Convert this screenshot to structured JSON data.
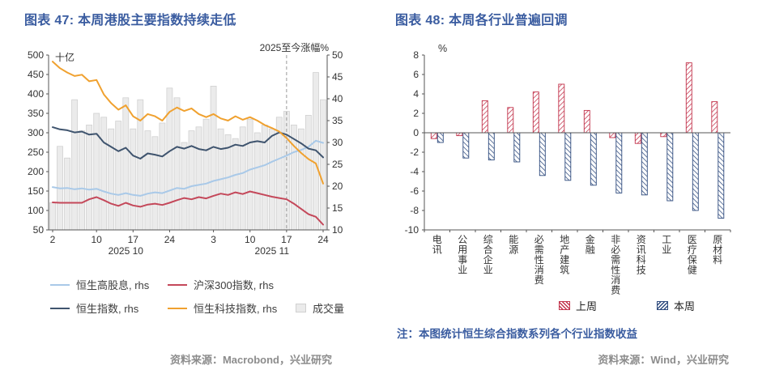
{
  "theme": {
    "title_color": "#3A5CA0",
    "note_color": "#3A5CA0",
    "source_color": "#8C8C8C",
    "axis_text_color": "#333333",
    "axis_line_color": "#555555",
    "dashed_line_color": "#999999",
    "background": "#FFFFFF"
  },
  "chart_data": [
    {
      "type": "line+bar",
      "title": "图表 47: 本周港股主要指数持续走低",
      "annotation": "2025至今涨幅%",
      "source": "资料来源：Macrobond，兴业研究",
      "left_axis": {
        "label": "十亿",
        "min": 50,
        "max": 500,
        "ticks": [
          500,
          450,
          400,
          350,
          300,
          250,
          200,
          150,
          100,
          50
        ]
      },
      "right_axis": {
        "min": 10,
        "max": 50,
        "ticks": [
          50,
          45,
          40,
          35,
          30,
          25,
          20,
          15,
          10
        ]
      },
      "x_ticks": [
        {
          "index": 0,
          "label": "2"
        },
        {
          "index": 6,
          "label": "10"
        },
        {
          "index": 11,
          "label": "17"
        },
        {
          "index": 16,
          "label": "24"
        },
        {
          "index": 22,
          "label": "3"
        },
        {
          "index": 27,
          "label": "10"
        },
        {
          "index": 32,
          "label": "17"
        },
        {
          "index": 37,
          "label": "24"
        }
      ],
      "x_group_labels": [
        {
          "center": 10,
          "label": "2025 10"
        },
        {
          "center": 30,
          "label": "2025 11"
        }
      ],
      "dashed_line_index": 32,
      "volume": {
        "name": "成交量",
        "fill": "#EBEBEB",
        "border": "#D0D0D0",
        "values": [
          120,
          265,
          235,
          385,
          305,
          320,
          350,
          340,
          310,
          330,
          390,
          310,
          385,
          305,
          290,
          325,
          415,
          390,
          275,
          305,
          315,
          335,
          420,
          310,
          295,
          285,
          315,
          335,
          300,
          320,
          310,
          340,
          355,
          320,
          310,
          345,
          455,
          385
        ]
      },
      "series": [
        {
          "name": "恒生高股息, rhs",
          "color": "#A9C9E8",
          "values": [
            19.8,
            19.5,
            19.6,
            19.3,
            19.5,
            19.2,
            19.4,
            18.8,
            18.3,
            18.0,
            18.4,
            18.0,
            17.8,
            18.3,
            18.6,
            18.4,
            19.0,
            19.6,
            19.4,
            20.0,
            20.3,
            20.6,
            21.2,
            21.6,
            22.0,
            22.6,
            23.0,
            23.8,
            24.3,
            24.8,
            25.6,
            26.3,
            27.0,
            27.8,
            28.3,
            29.0,
            30.4,
            29.9
          ]
        },
        {
          "name": "沪深300指数, rhs",
          "color": "#C4485A",
          "values": [
            16.3,
            16.2,
            16.2,
            16.2,
            16.2,
            17.0,
            17.5,
            16.8,
            16.0,
            15.5,
            16.2,
            15.6,
            15.3,
            15.8,
            16.0,
            15.7,
            16.2,
            16.8,
            17.3,
            17.0,
            17.5,
            17.2,
            17.8,
            18.3,
            18.0,
            18.6,
            18.2,
            18.8,
            18.4,
            18.0,
            17.6,
            17.3,
            17.0,
            16.0,
            14.8,
            13.6,
            13.0,
            11.2
          ]
        },
        {
          "name": "恒生指数, rhs",
          "color": "#3F546E",
          "values": [
            33.5,
            33.0,
            32.8,
            32.3,
            32.5,
            31.8,
            32.0,
            30.0,
            29.0,
            28.0,
            28.8,
            27.0,
            26.3,
            27.5,
            27.2,
            26.8,
            28.0,
            29.0,
            28.6,
            29.2,
            28.5,
            28.2,
            29.0,
            28.5,
            28.8,
            29.5,
            29.2,
            30.0,
            30.3,
            30.0,
            31.5,
            32.3,
            31.8,
            30.8,
            29.8,
            28.6,
            28.2,
            26.6
          ]
        },
        {
          "name": "恒生科技指数, rhs",
          "color": "#F0A12F",
          "values": [
            48.5,
            47.0,
            46.0,
            45.2,
            45.5,
            44.0,
            44.3,
            41.0,
            39.0,
            37.5,
            38.5,
            36.0,
            35.0,
            36.5,
            36.0,
            35.0,
            37.0,
            38.0,
            37.2,
            37.8,
            36.5,
            35.8,
            36.5,
            35.5,
            35.0,
            36.0,
            35.2,
            35.8,
            35.0,
            34.0,
            33.3,
            32.5,
            31.0,
            29.2,
            27.6,
            26.2,
            25.2,
            20.6
          ]
        }
      ],
      "legend_rows": [
        [
          {
            "type": "line",
            "series": 0
          },
          {
            "type": "line",
            "series": 1
          }
        ],
        [
          {
            "type": "line",
            "series": 2
          },
          {
            "type": "line",
            "series": 3
          },
          {
            "type": "box"
          }
        ]
      ]
    },
    {
      "type": "bar",
      "title": "图表 48: 本周各行业普遍回调",
      "ylabel": "%",
      "ylim": [
        -10,
        8
      ],
      "yticks": [
        8,
        6,
        4,
        2,
        0,
        -2,
        -4,
        -6,
        -8,
        -10
      ],
      "categories": [
        "电讯",
        "公用事业",
        "综合企业",
        "能源",
        "必需性消费",
        "地产建筑",
        "金融",
        "非必需性消费",
        "资讯科技",
        "工业",
        "医疗保健",
        "原材料"
      ],
      "series": [
        {
          "name": "上周",
          "color": "#C2344C",
          "hatch_angle": 45,
          "values": [
            -0.6,
            -0.3,
            3.3,
            2.6,
            4.2,
            5.0,
            2.3,
            -0.5,
            -1.1,
            -0.4,
            7.2,
            3.2
          ]
        },
        {
          "name": "本周",
          "color": "#2F4B7E",
          "hatch_angle": -45,
          "values": [
            -1.0,
            -2.6,
            -2.8,
            -3.0,
            -4.4,
            -4.9,
            -5.4,
            -6.2,
            -6.4,
            -7.0,
            -8.0,
            -8.8
          ]
        }
      ],
      "legend_position": "bottom",
      "grid": false,
      "note": "注：本图统计恒生综合指数系列各个行业指数收益",
      "source": "资料来源：Wind，兴业研究"
    }
  ]
}
